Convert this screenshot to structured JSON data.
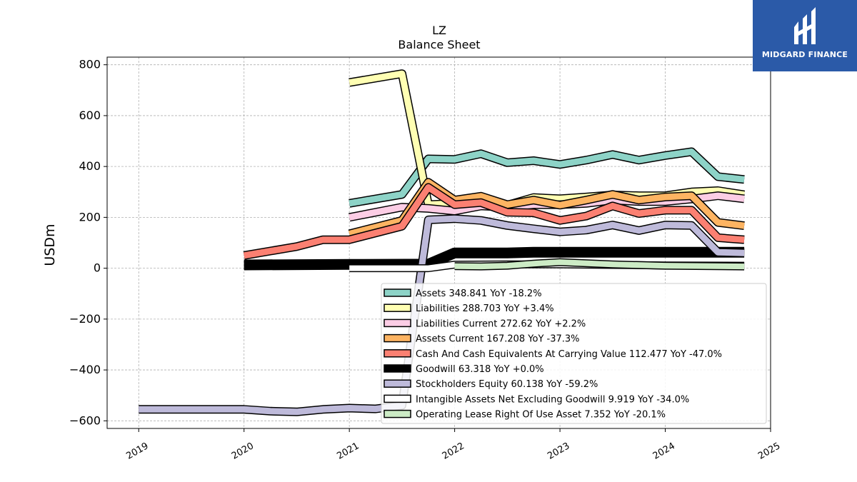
{
  "chart_data": {
    "type": "line",
    "title": "LZ",
    "subtitle": "Balance  Sheet",
    "ylabel": "USDm",
    "xlabel": "",
    "xlim": [
      2018.7,
      2025.0
    ],
    "ylim": [
      -630,
      830
    ],
    "x_ticks": [
      2019,
      2020,
      2021,
      2022,
      2023,
      2024,
      2025
    ],
    "y_ticks": [
      -600,
      -400,
      -200,
      0,
      200,
      400,
      600,
      800
    ],
    "y_tick_labels": [
      "−600",
      "−400",
      "−200",
      "0",
      "200",
      "400",
      "600",
      "800"
    ],
    "grid": true,
    "legend_position": "lower-right",
    "series": [
      {
        "name": "Assets",
        "legend": "Assets  348.841 YoY -18.2%",
        "color": "#8dd3c7",
        "width": 9,
        "points": [
          [
            2021.0,
            255
          ],
          [
            2021.5,
            290
          ],
          [
            2021.75,
            430
          ],
          [
            2022.0,
            428
          ],
          [
            2022.25,
            450
          ],
          [
            2022.5,
            415
          ],
          [
            2022.75,
            423
          ],
          [
            2023.0,
            408
          ],
          [
            2023.25,
            425
          ],
          [
            2023.5,
            447
          ],
          [
            2023.75,
            425
          ],
          [
            2024.0,
            443
          ],
          [
            2024.25,
            458
          ],
          [
            2024.5,
            360
          ],
          [
            2024.75,
            349
          ]
        ]
      },
      {
        "name": "Liabilities",
        "legend": "Liabilities  288.703 YoY +3.4%",
        "color": "#ffffb3",
        "width": 9,
        "points": [
          [
            2021.0,
            730
          ],
          [
            2021.5,
            765
          ],
          [
            2021.75,
            250
          ],
          [
            2022.0,
            255
          ],
          [
            2022.25,
            265
          ],
          [
            2022.5,
            248
          ],
          [
            2022.75,
            278
          ],
          [
            2023.0,
            273
          ],
          [
            2023.25,
            280
          ],
          [
            2023.5,
            288
          ],
          [
            2023.75,
            285
          ],
          [
            2024.0,
            285
          ],
          [
            2024.25,
            300
          ],
          [
            2024.5,
            305
          ],
          [
            2024.75,
            289
          ]
        ]
      },
      {
        "name": "Liabilities Current",
        "legend": "Liabilities Current  272.62 YoY +2.2%",
        "color": "#fccde5",
        "width": 9,
        "points": [
          [
            2021.0,
            200
          ],
          [
            2021.5,
            240
          ],
          [
            2021.75,
            235
          ],
          [
            2022.0,
            225
          ],
          [
            2022.25,
            245
          ],
          [
            2022.5,
            240
          ],
          [
            2022.75,
            250
          ],
          [
            2023.0,
            250
          ],
          [
            2023.25,
            255
          ],
          [
            2023.5,
            268
          ],
          [
            2023.75,
            262
          ],
          [
            2024.0,
            262
          ],
          [
            2024.25,
            272
          ],
          [
            2024.5,
            285
          ],
          [
            2024.75,
            273
          ]
        ]
      },
      {
        "name": "Assets Current",
        "legend": "Assets Current  167.208 YoY -37.3%",
        "color": "#fdb462",
        "width": 9,
        "points": [
          [
            2021.0,
            135
          ],
          [
            2021.5,
            188
          ],
          [
            2021.75,
            338
          ],
          [
            2022.0,
            268
          ],
          [
            2022.25,
            283
          ],
          [
            2022.5,
            250
          ],
          [
            2022.75,
            268
          ],
          [
            2023.0,
            248
          ],
          [
            2023.25,
            268
          ],
          [
            2023.5,
            290
          ],
          [
            2023.75,
            268
          ],
          [
            2024.0,
            280
          ],
          [
            2024.25,
            285
          ],
          [
            2024.5,
            180
          ],
          [
            2024.75,
            167
          ]
        ]
      },
      {
        "name": "Cash And Cash Equivalents At Carrying Value",
        "legend": "Cash And Cash Equivalents At Carrying Value  112.477 YoY -47.0%",
        "color": "#fb8072",
        "width": 9,
        "points": [
          [
            2020.0,
            50
          ],
          [
            2020.5,
            85
          ],
          [
            2020.75,
            112
          ],
          [
            2021.0,
            112
          ],
          [
            2021.5,
            165
          ],
          [
            2021.75,
            318
          ],
          [
            2022.0,
            250
          ],
          [
            2022.25,
            258
          ],
          [
            2022.5,
            220
          ],
          [
            2022.75,
            218
          ],
          [
            2023.0,
            188
          ],
          [
            2023.25,
            205
          ],
          [
            2023.5,
            245
          ],
          [
            2023.75,
            215
          ],
          [
            2024.0,
            228
          ],
          [
            2024.25,
            228
          ],
          [
            2024.5,
            120
          ],
          [
            2024.75,
            112
          ]
        ]
      },
      {
        "name": "Goodwill",
        "legend": "Goodwill  63.318 YoY +0.0%",
        "color": "#000000",
        "width": 12,
        "points": [
          [
            2020.0,
            13
          ],
          [
            2021.0,
            15
          ],
          [
            2021.75,
            16
          ],
          [
            2022.0,
            60
          ],
          [
            2022.5,
            60
          ],
          [
            2022.75,
            63
          ],
          [
            2023.0,
            63
          ],
          [
            2024.0,
            63
          ],
          [
            2024.75,
            63
          ]
        ]
      },
      {
        "name": "Stockholders Equity",
        "legend": "Stockholders Equity  60.138 YoY -59.2%",
        "color": "#bebada",
        "width": 9,
        "points": [
          [
            2019.0,
            -555
          ],
          [
            2020.0,
            -555
          ],
          [
            2020.25,
            -562
          ],
          [
            2020.5,
            -565
          ],
          [
            2020.75,
            -555
          ],
          [
            2021.0,
            -550
          ],
          [
            2021.25,
            -553
          ],
          [
            2021.5,
            -540
          ],
          [
            2021.75,
            190
          ],
          [
            2022.0,
            195
          ],
          [
            2022.25,
            188
          ],
          [
            2022.5,
            168
          ],
          [
            2022.75,
            155
          ],
          [
            2023.0,
            143
          ],
          [
            2023.25,
            150
          ],
          [
            2023.5,
            170
          ],
          [
            2023.75,
            148
          ],
          [
            2024.0,
            170
          ],
          [
            2024.25,
            168
          ],
          [
            2024.5,
            63
          ],
          [
            2024.75,
            60
          ]
        ]
      },
      {
        "name": "Intangible Assets Net Excluding Goodwill",
        "legend": "Intangible Assets Net Excluding Goodwill  9.919 YoY -34.0%",
        "color": "#ffffff",
        "width": 8,
        "points": [
          [
            2021.0,
            0
          ],
          [
            2021.75,
            0
          ],
          [
            2022.0,
            14
          ],
          [
            2022.5,
            15
          ],
          [
            2023.0,
            15
          ],
          [
            2023.5,
            13
          ],
          [
            2024.0,
            11
          ],
          [
            2024.75,
            10
          ]
        ]
      },
      {
        "name": "Operating Lease Right Of Use Asset",
        "legend": "Operating Lease Right Of Use Asset  7.352 YoY -20.1%",
        "color": "#ccebc5",
        "width": 8,
        "points": [
          [
            2022.0,
            8
          ],
          [
            2022.25,
            7
          ],
          [
            2022.5,
            10
          ],
          [
            2022.75,
            18
          ],
          [
            2023.0,
            24
          ],
          [
            2023.5,
            15
          ],
          [
            2024.0,
            10
          ],
          [
            2024.75,
            7
          ]
        ]
      }
    ]
  },
  "logo": {
    "text": "MIDGARD FINANCE"
  }
}
